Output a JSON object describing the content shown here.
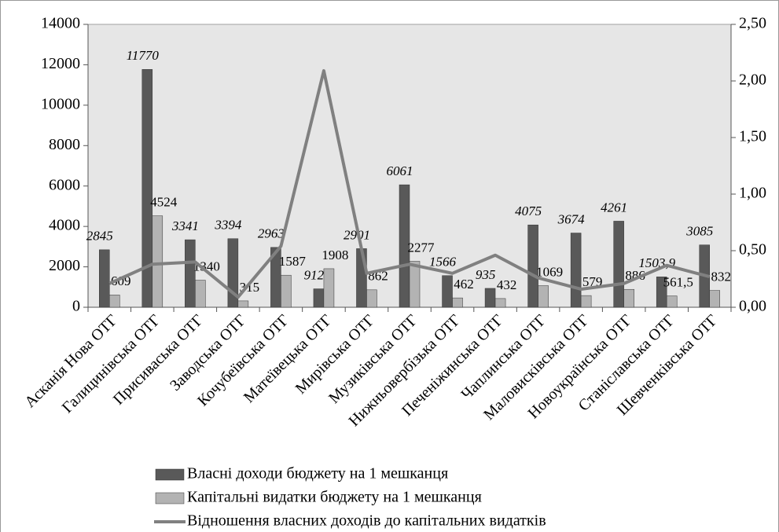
{
  "chart_data": {
    "type": "bar",
    "categories": [
      "Асканія Нова ОТГ",
      "Галицинівська ОТГ",
      "Присиваська ОТГ",
      "Заводська ОТГ",
      "Кочубеївська ОТГ",
      "Матеївецька ОТГ",
      "Мирівська ОТГ",
      "Музиківська ОТГ",
      "Нижньовербізька ОТГ",
      "Печеніжинська ОТГ",
      "Чаплинська ОТГ",
      "Маловисківська ОТГ",
      "Новоукраїнська ОТГ",
      "Станіславська ОТГ",
      "Шевченківська ОТГ"
    ],
    "series": [
      {
        "name": "Власні доходи бюджету на 1 мешканця",
        "color": "#595959",
        "type": "bar",
        "values": [
          2845,
          11770,
          3341,
          3394,
          2963,
          912,
          2901,
          6061,
          1566,
          935,
          4075,
          3674,
          4261,
          1503.9,
          3085
        ],
        "value_labels": [
          "2845",
          "11770",
          "3341",
          "3394",
          "2963",
          "912",
          "2901",
          "6061",
          "1566",
          "935",
          "4075",
          "3674",
          "4261",
          "1503,9",
          "3085"
        ]
      },
      {
        "name": "Капітальні видатки бюджету на 1 мешканця",
        "color": "#b3b3b3",
        "type": "bar",
        "values": [
          609,
          4524,
          1340,
          315,
          1587,
          1908,
          862,
          2277,
          462,
          432,
          1069,
          579,
          886,
          561.5,
          832
        ],
        "value_labels": [
          "609",
          "4524",
          "1340",
          "315",
          "1587",
          "1908",
          "862",
          "2277",
          "462",
          "432",
          "1069",
          "579",
          "886",
          "561,5",
          "832"
        ]
      },
      {
        "name": "Відношення власних доходів до капітальних видатків",
        "color": "#808080",
        "type": "line",
        "axis": "y2",
        "values": [
          0.21,
          0.38,
          0.4,
          0.09,
          0.54,
          2.09,
          0.3,
          0.38,
          0.3,
          0.46,
          0.26,
          0.16,
          0.21,
          0.37,
          0.27
        ]
      }
    ],
    "ylim": [
      0,
      14000
    ],
    "yticks": [
      0,
      2000,
      4000,
      6000,
      8000,
      10000,
      12000,
      14000
    ],
    "y2lim": [
      0,
      2.5
    ],
    "y2ticks": [
      {
        "value": 0,
        "label": "0,00"
      },
      {
        "value": 0.5,
        "label": "0,50"
      },
      {
        "value": 1,
        "label": "1,00"
      },
      {
        "value": 1.5,
        "label": "1,50"
      },
      {
        "value": 2,
        "label": "2,00"
      },
      {
        "value": 2.5,
        "label": "2,50"
      }
    ],
    "grid": false,
    "legend": "bottom"
  }
}
